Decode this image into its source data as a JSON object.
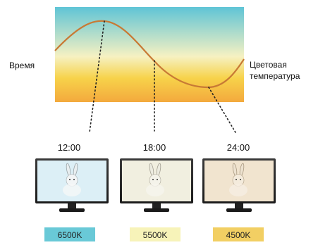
{
  "labels": {
    "left": "Время",
    "right_line1": "Цветовая",
    "right_line2": "температура"
  },
  "colors": {
    "gradient_top": "#5fc4d6",
    "gradient_mid": "#f6f1c2",
    "gradient_yellow": "#f7d24a",
    "gradient_bottom": "#f3a93d",
    "curve": "#c87a35",
    "badge_6500": "#69c9d7",
    "badge_5500": "#f7f3b9",
    "badge_4500": "#f2cf63",
    "screen_6500": "#dceff6",
    "screen_5500": "#f1efe0",
    "screen_4500": "#f1e4cf"
  },
  "monitors": [
    {
      "time": "12:00",
      "temp": "6500K"
    },
    {
      "time": "18:00",
      "temp": "5500K"
    },
    {
      "time": "24:00",
      "temp": "4500K"
    }
  ]
}
